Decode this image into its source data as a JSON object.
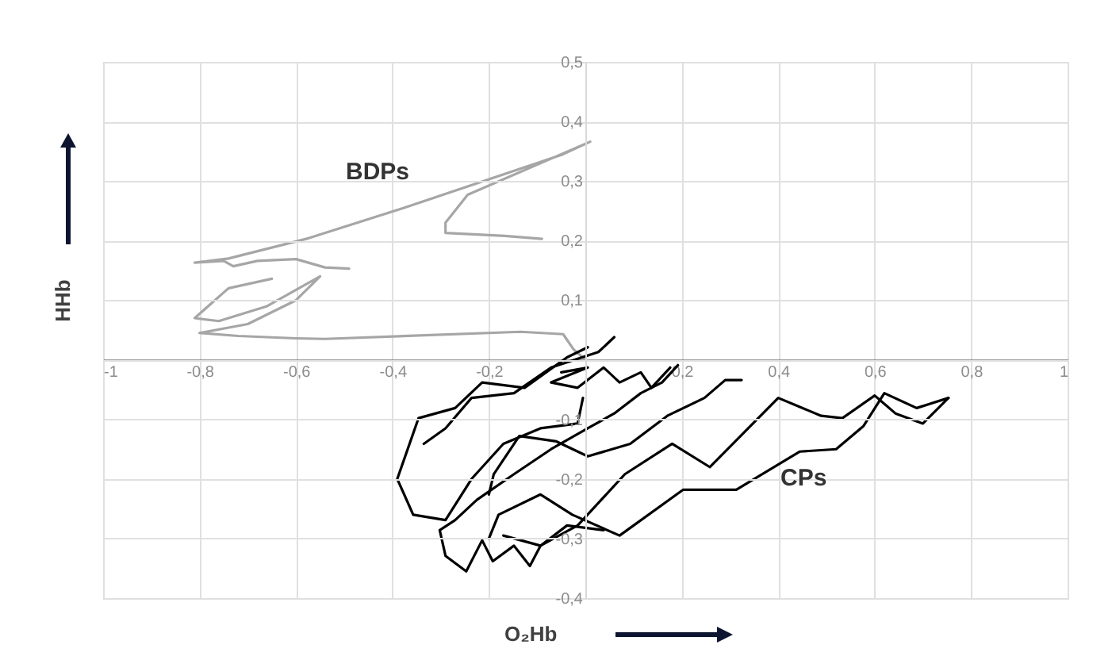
{
  "chart_data": {
    "type": "line",
    "xlabel": "O₂Hb",
    "ylabel": "HHb",
    "xlim": [
      -1,
      1
    ],
    "ylim": [
      -0.4,
      0.5
    ],
    "xticks": [
      {
        "value": -1,
        "label": "-1"
      },
      {
        "value": -0.8,
        "label": "-0,8"
      },
      {
        "value": -0.6,
        "label": "-0,6"
      },
      {
        "value": -0.4,
        "label": "-0,4"
      },
      {
        "value": -0.2,
        "label": "-0,2"
      },
      {
        "value": 0,
        "label": null
      },
      {
        "value": 0.2,
        "label": "0,2"
      },
      {
        "value": 0.4,
        "label": "0,4"
      },
      {
        "value": 0.6,
        "label": "0,6"
      },
      {
        "value": 0.8,
        "label": "0,8"
      },
      {
        "value": 1,
        "label": "1"
      }
    ],
    "yticks": [
      {
        "value": -0.4,
        "label": "-0,4"
      },
      {
        "value": -0.3,
        "label": "-0,3"
      },
      {
        "value": -0.2,
        "label": "-0,2"
      },
      {
        "value": -0.1,
        "label": "-0,1"
      },
      {
        "value": 0,
        "label": null
      },
      {
        "value": 0.1,
        "label": "0,1"
      },
      {
        "value": 0.2,
        "label": "0,2"
      },
      {
        "value": 0.3,
        "label": "0,3"
      },
      {
        "value": 0.4,
        "label": "0,4"
      },
      {
        "value": 0.5,
        "label": "0,5"
      }
    ],
    "grid": true,
    "legend": false,
    "marker": "none",
    "line_style": "solid",
    "annotations": [
      "BDPs",
      "CPs"
    ],
    "series": [
      {
        "color": "#a6a6a6",
        "x": [
          -0.09,
          -0.167,
          -0.29,
          -0.29,
          -0.244,
          0.01,
          -0.046,
          -0.376,
          -0.574,
          -0.74,
          -0.81,
          -0.75,
          -0.73,
          -0.68,
          -0.6,
          -0.54,
          -0.49
        ],
        "values": [
          0.203,
          0.208,
          0.213,
          0.23,
          0.277,
          0.366,
          0.345,
          0.255,
          0.204,
          0.17,
          0.163,
          0.166,
          0.157,
          0.166,
          0.169,
          0.155,
          0.153
        ]
      },
      {
        "color": "#a6a6a6",
        "x": [
          -0.65,
          -0.74,
          -0.81,
          -0.76,
          -0.66,
          -0.55,
          -0.6,
          -0.7,
          -0.8,
          -0.72,
          -0.6,
          -0.54,
          -0.134,
          -0.046,
          -0.024,
          0
        ],
        "values": [
          0.136,
          0.12,
          0.07,
          0.065,
          0.09,
          0.14,
          0.1,
          0.06,
          0.045,
          0.04,
          0.036,
          0.035,
          0.047,
          0.043,
          0.017,
          0
        ]
      },
      {
        "color": "#000000",
        "x": [
          0.753,
          0.7,
          0.643,
          0.6,
          0.533,
          0.489,
          0.4,
          0.258,
          0.18,
          0.082,
          -0.016,
          -0.093,
          -0.17
        ],
        "values": [
          -0.064,
          -0.107,
          -0.09,
          -0.06,
          -0.098,
          -0.094,
          -0.064,
          -0.18,
          -0.141,
          -0.192,
          -0.278,
          -0.312,
          -0.295
        ]
      },
      {
        "color": "#000000",
        "x": [
          0.753,
          0.687,
          0.62,
          0.577,
          0.52,
          0.445,
          0.313,
          0.203,
          0.071,
          -0.027,
          -0.093,
          -0.18,
          -0.2
        ],
        "values": [
          -0.064,
          -0.081,
          -0.056,
          -0.111,
          -0.15,
          -0.154,
          -0.218,
          -0.218,
          -0.295,
          -0.26,
          -0.226,
          -0.26,
          -0.3
        ]
      },
      {
        "color": "#000000",
        "x": [
          0.324,
          0.29,
          0.247,
          0.17,
          0.093,
          0.005,
          -0.06,
          -0.137,
          -0.19,
          -0.2
        ],
        "values": [
          -0.034,
          -0.034,
          -0.064,
          -0.094,
          -0.141,
          -0.162,
          -0.137,
          -0.128,
          -0.192,
          -0.226
        ]
      },
      {
        "color": "#000000",
        "x": [
          0.005,
          -0.038,
          -0.126,
          -0.214,
          -0.27,
          -0.346,
          -0.39,
          -0.357,
          -0.29,
          -0.236,
          -0.17,
          -0.093,
          -0.016,
          -0.005
        ],
        "values": [
          0.021,
          0.004,
          -0.047,
          -0.038,
          -0.081,
          -0.098,
          -0.2,
          -0.26,
          -0.269,
          -0.2,
          -0.141,
          -0.115,
          -0.107,
          -0.064
        ]
      },
      {
        "color": "#000000",
        "x": [
          0.06,
          0.027,
          -0.071,
          -0.148,
          -0.236,
          -0.29,
          -0.335
        ],
        "values": [
          0.038,
          0.013,
          -0.013,
          -0.056,
          -0.064,
          -0.115,
          -0.141
        ]
      },
      {
        "color": "#000000",
        "x": [
          0.192,
          0.159,
          0.115,
          0.06,
          0.005,
          -0.071,
          -0.148,
          -0.225,
          -0.27,
          -0.302,
          -0.29,
          -0.247,
          -0.214,
          -0.192,
          -0.148,
          -0.115,
          -0.093,
          -0.038,
          0.038
        ],
        "values": [
          -0.009,
          -0.038,
          -0.056,
          -0.09,
          -0.115,
          -0.15,
          -0.192,
          -0.235,
          -0.269,
          -0.286,
          -0.329,
          -0.355,
          -0.303,
          -0.338,
          -0.312,
          -0.346,
          -0.312,
          -0.278,
          -0.286
        ]
      },
      {
        "color": "#000000",
        "x": [
          -0.05,
          0.005,
          -0.071,
          -0.016,
          0.038,
          0.071,
          0.115,
          0.137,
          0.176
        ],
        "values": [
          -0.021,
          -0.013,
          -0.038,
          -0.047,
          -0.013,
          -0.038,
          -0.021,
          -0.047,
          -0.013
        ]
      }
    ]
  }
}
